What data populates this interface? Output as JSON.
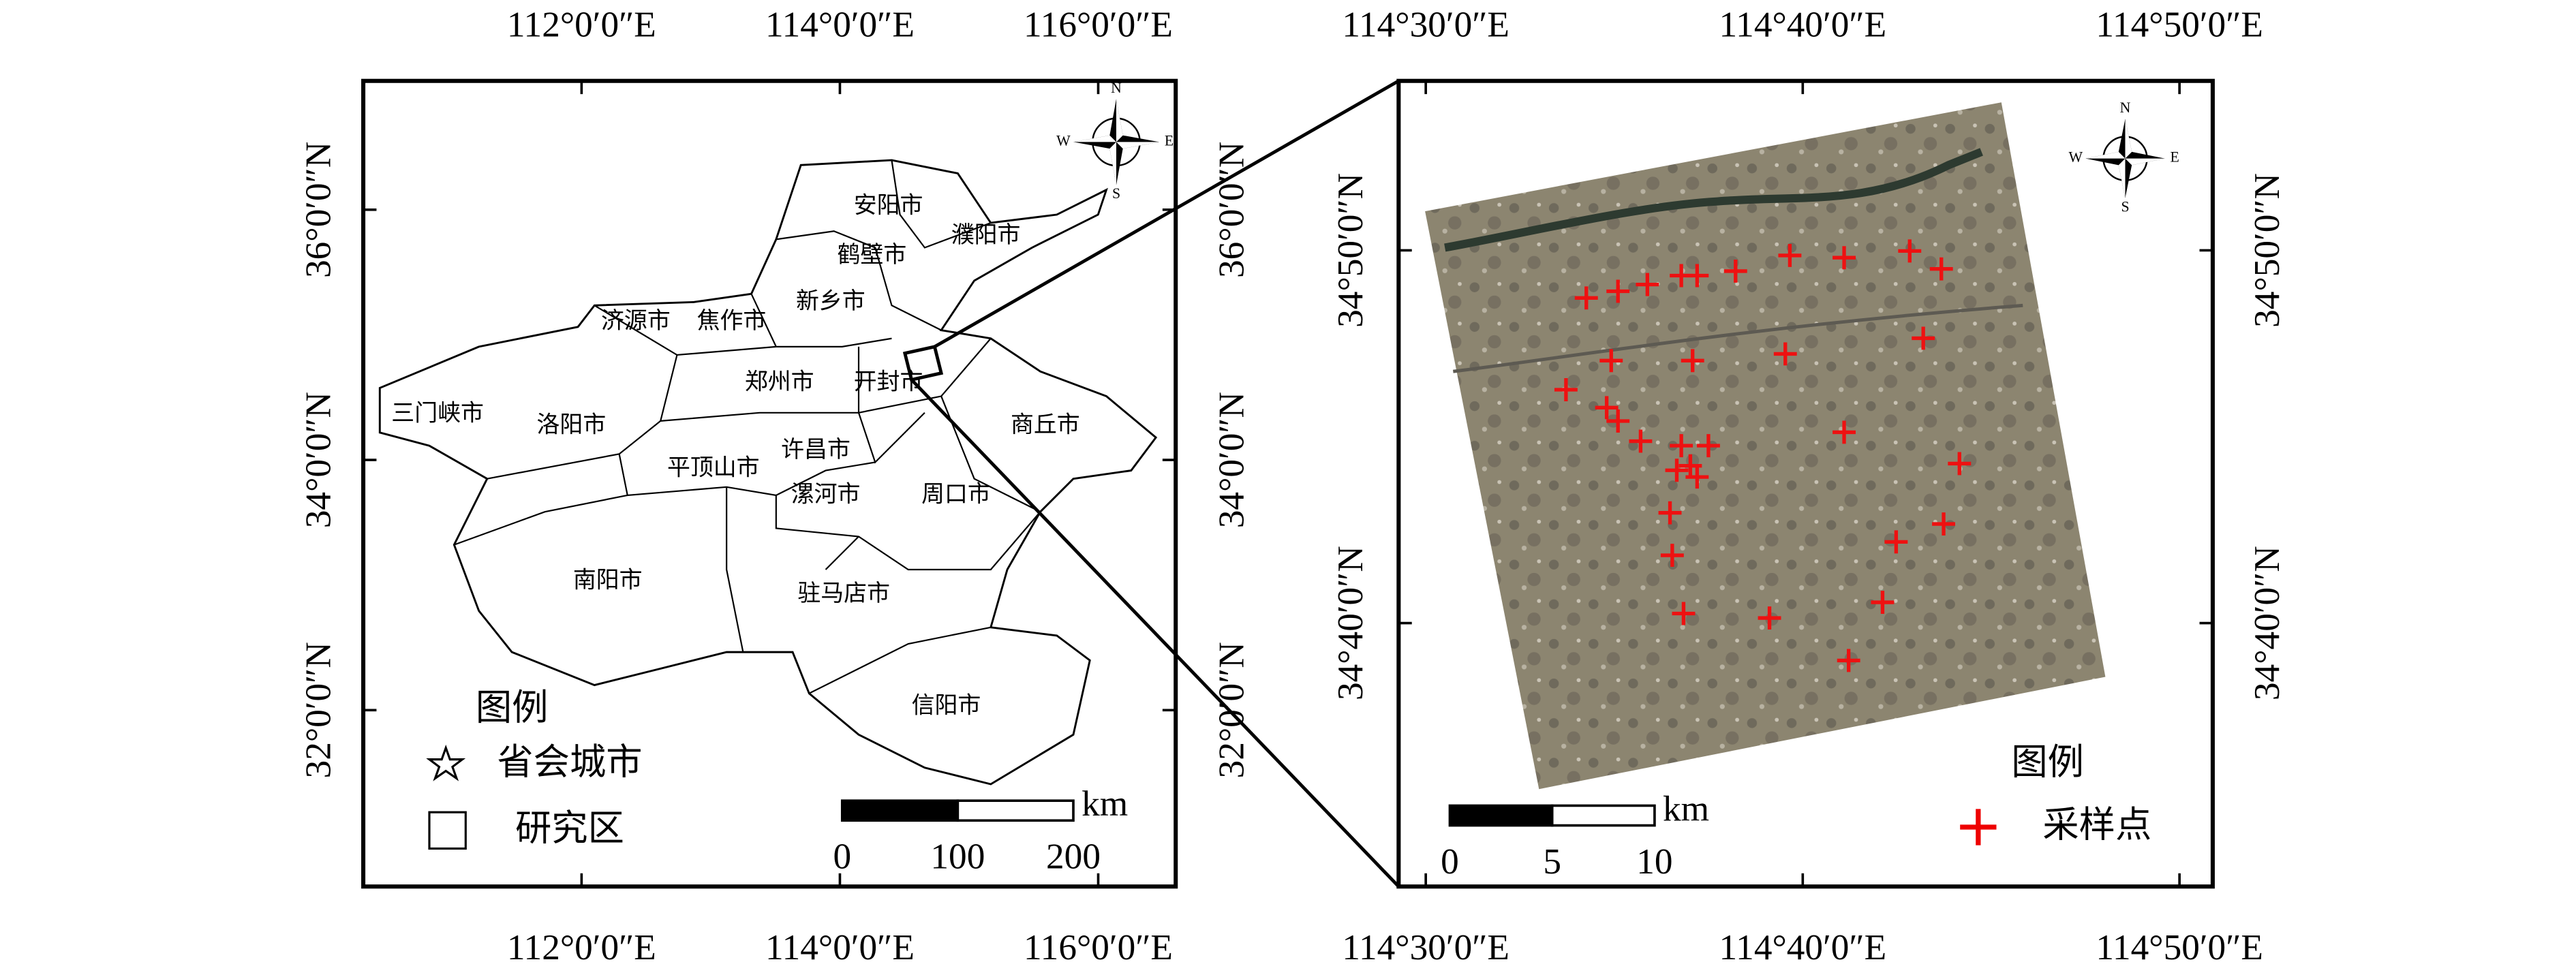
{
  "left_map": {
    "xlim": [
      110.31,
      116.6
    ],
    "ylim": [
      30.59,
      37.03
    ],
    "xticks": [
      {
        "value": 112,
        "label": "112°0′0″E"
      },
      {
        "value": 114,
        "label": "114°0′0″E"
      },
      {
        "value": 116,
        "label": "116°0′0″E"
      }
    ],
    "yticks": [
      {
        "value": 32,
        "label": "32°0′0″N"
      },
      {
        "value": 34,
        "label": "34°0′0″N"
      },
      {
        "value": 36,
        "label": "36°0′0″N"
      }
    ],
    "cities": [
      "安阳市",
      "濮阳市",
      "鹤壁市",
      "新乡市",
      "济源市",
      "焦作市",
      "郑州市",
      "开封市",
      "三门峡市",
      "洛阳市",
      "商丘市",
      "许昌市",
      "平顶山市",
      "漯河市",
      "周口市",
      "南阳市",
      "驻马店市",
      "信阳市"
    ],
    "compass": [
      "N",
      "E",
      "S",
      "W"
    ],
    "legend_title": "图例",
    "legend": [
      "省会城市",
      "研究区"
    ],
    "scale": {
      "ticks": [
        0,
        100,
        200
      ],
      "unit": "km"
    }
  },
  "right_map": {
    "xlim": [
      114.488,
      114.848
    ],
    "ylim": [
      34.549,
      34.909
    ],
    "xticks": [
      {
        "value": 114.5,
        "label": "114°30′0″E"
      },
      {
        "value": 114.6667,
        "label": "114°40′0″E"
      },
      {
        "value": 114.8333,
        "label": "114°50′0″E"
      }
    ],
    "yticks": [
      {
        "value": 34.6667,
        "label": "34°40′0″N"
      },
      {
        "value": 34.8333,
        "label": "34°50′0″N"
      }
    ],
    "compass": [
      "N",
      "E",
      "S",
      "W"
    ],
    "legend_title": "图例",
    "legend": [
      "采样点"
    ],
    "scale": {
      "ticks": [
        0,
        5,
        10
      ],
      "unit": "km"
    },
    "sample_points": {
      "lon": [
        114.571,
        114.585,
        114.598,
        114.613,
        114.62,
        114.637,
        114.661,
        114.685,
        114.714,
        114.728,
        114.582,
        114.618,
        114.659,
        114.72,
        114.562,
        114.58,
        114.585,
        114.595,
        114.613,
        114.625,
        114.685,
        114.611,
        114.617,
        114.62,
        114.736,
        114.608,
        114.708,
        114.729,
        114.609,
        114.614,
        114.652,
        114.702,
        114.687
      ],
      "lat": [
        34.812,
        34.815,
        34.818,
        34.822,
        34.822,
        34.824,
        34.831,
        34.83,
        34.833,
        34.825,
        34.784,
        34.784,
        34.787,
        34.794,
        34.771,
        34.763,
        34.757,
        34.748,
        34.746,
        34.746,
        34.752,
        34.735,
        34.737,
        34.732,
        34.738,
        34.716,
        34.703,
        34.711,
        34.697,
        34.671,
        34.669,
        34.676,
        34.65
      ]
    }
  }
}
